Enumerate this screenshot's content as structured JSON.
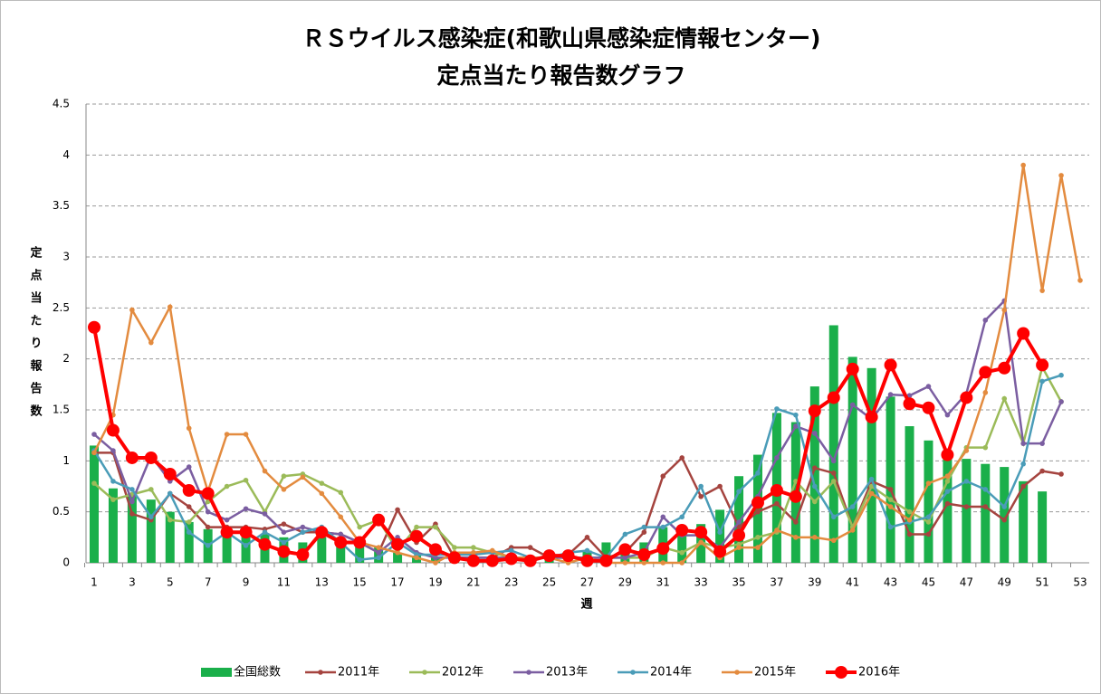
{
  "chart_data": {
    "type": "combo",
    "title": "ＲＳウイルス感染症(和歌山県感染症情報センター)",
    "subtitle": "定点当たり報告数グラフ",
    "x_label": "週",
    "y_label": "定点当たり報告数",
    "categories": [
      1,
      null,
      3,
      null,
      5,
      null,
      7,
      null,
      9,
      null,
      11,
      null,
      13,
      null,
      15,
      null,
      17,
      null,
      19,
      null,
      21,
      null,
      23,
      null,
      25,
      null,
      27,
      null,
      29,
      null,
      31,
      null,
      33,
      null,
      35,
      null,
      37,
      null,
      39,
      null,
      41,
      null,
      43,
      null,
      45,
      null,
      47,
      null,
      49,
      null,
      51,
      null,
      53
    ],
    "ylim": [
      0,
      4.5
    ],
    "yticks": [
      0,
      0.5,
      1,
      1.5,
      2,
      2.5,
      3,
      3.5,
      4,
      4.5
    ],
    "grid": true,
    "legend": "bottom",
    "series": [
      {
        "name": "全国総数",
        "type": "bar",
        "color": "#1aaf4a",
        "values": [
          1.15,
          0.73,
          0.68,
          0.62,
          0.5,
          0.4,
          0.33,
          0.3,
          0.3,
          0.28,
          0.25,
          0.2,
          0.25,
          0.22,
          0.2,
          0.15,
          0.1,
          0.07,
          0.05,
          0.05,
          0.05,
          0.05,
          0.05,
          0.05,
          0.06,
          0.08,
          0.12,
          0.2,
          0.1,
          0.2,
          0.35,
          0.3,
          0.38,
          0.52,
          0.85,
          1.06,
          1.47,
          1.38,
          1.73,
          2.33,
          2.02,
          1.91,
          1.63,
          1.34,
          1.2,
          1.05,
          1.02,
          0.97,
          0.94,
          0.8,
          0.7,
          null,
          null
        ]
      },
      {
        "name": "2011年",
        "type": "line",
        "color": "#a5443f",
        "values": [
          1.08,
          1.08,
          0.48,
          0.42,
          0.68,
          0.55,
          0.35,
          0.35,
          0.35,
          0.33,
          0.38,
          0.3,
          0.3,
          0.28,
          0.2,
          0.1,
          0.52,
          0.2,
          0.38,
          0.05,
          0.05,
          0.05,
          0.15,
          0.15,
          0.05,
          0.08,
          0.25,
          0.05,
          0.1,
          0.3,
          0.85,
          1.03,
          0.65,
          0.75,
          0.35,
          0.5,
          0.58,
          0.4,
          0.93,
          0.88,
          0.35,
          0.8,
          0.72,
          0.28,
          0.28,
          0.58,
          0.55,
          0.55,
          0.42,
          0.75,
          0.9,
          0.87,
          null
        ]
      },
      {
        "name": "2012年",
        "type": "line",
        "color": "#9bbb59",
        "values": [
          0.78,
          0.62,
          0.67,
          0.72,
          0.42,
          0.4,
          0.6,
          0.75,
          0.81,
          0.5,
          0.85,
          0.87,
          0.78,
          0.69,
          0.35,
          0.42,
          0.12,
          0.35,
          0.35,
          0.15,
          0.15,
          0.1,
          0.05,
          0.05,
          0.05,
          0.05,
          0.05,
          0.05,
          0.05,
          0.05,
          0.15,
          0.1,
          0.2,
          0.15,
          0.18,
          0.25,
          0.3,
          0.8,
          0.6,
          0.8,
          0.35,
          0.75,
          0.62,
          0.5,
          0.4,
          0.8,
          1.13,
          1.13,
          1.61,
          1.17,
          1.92,
          1.58,
          null
        ]
      },
      {
        "name": "2013年",
        "type": "line",
        "color": "#7b5ea1",
        "values": [
          1.26,
          1.1,
          0.6,
          1.05,
          0.8,
          0.94,
          0.5,
          0.42,
          0.53,
          0.48,
          0.3,
          0.35,
          0.3,
          0.28,
          0.2,
          0.1,
          0.25,
          0.1,
          0.05,
          0.05,
          0.05,
          0.05,
          0.05,
          0.05,
          0.05,
          0.05,
          0.05,
          0.05,
          0.05,
          0.1,
          0.45,
          0.27,
          0.27,
          0.15,
          0.4,
          0.65,
          1.03,
          1.34,
          1.27,
          1.0,
          1.55,
          1.41,
          1.65,
          1.64,
          1.73,
          1.45,
          1.66,
          2.38,
          2.57,
          1.17,
          1.17,
          1.58,
          null
        ]
      },
      {
        "name": "2014年",
        "type": "line",
        "color": "#4a9cb8",
        "values": [
          1.1,
          0.8,
          0.72,
          0.45,
          0.68,
          0.3,
          0.17,
          0.3,
          0.17,
          0.3,
          0.2,
          0.3,
          0.35,
          0.2,
          0.03,
          0.05,
          0.2,
          0.08,
          0.08,
          0.08,
          0.08,
          0.1,
          0.12,
          0.05,
          0.05,
          0.1,
          0.12,
          0.05,
          0.28,
          0.35,
          0.35,
          0.45,
          0.75,
          0.3,
          0.7,
          0.88,
          1.51,
          1.45,
          0.75,
          0.45,
          0.55,
          0.82,
          0.35,
          0.4,
          0.45,
          0.7,
          0.8,
          0.72,
          0.55,
          0.97,
          1.78,
          1.84,
          null
        ]
      },
      {
        "name": "2015年",
        "type": "line",
        "color": "#e38b3f",
        "values": [
          1.08,
          1.45,
          2.48,
          2.16,
          2.51,
          1.32,
          0.7,
          1.26,
          1.26,
          0.9,
          0.72,
          0.84,
          0.68,
          0.45,
          0.2,
          0.15,
          0.1,
          0.05,
          0,
          0.1,
          0.1,
          0.12,
          0.05,
          0.05,
          0.05,
          0,
          0.05,
          0,
          0,
          0,
          0,
          0,
          0.2,
          0.05,
          0.15,
          0.15,
          0.32,
          0.25,
          0.25,
          0.22,
          0.32,
          0.68,
          0.55,
          0.42,
          0.78,
          0.85,
          1.1,
          1.67,
          2.48,
          3.9,
          2.67,
          3.8,
          2.77
        ]
      },
      {
        "name": "2016年",
        "type": "line",
        "color": "#ff0000",
        "emphasis": true,
        "values": [
          2.31,
          1.3,
          1.03,
          1.03,
          0.87,
          0.71,
          0.68,
          0.3,
          0.3,
          0.18,
          0.11,
          0.08,
          0.3,
          0.2,
          0.2,
          0.42,
          0.18,
          0.26,
          0.13,
          0.05,
          0.02,
          0.02,
          0.04,
          0.02,
          0.07,
          0.07,
          0.02,
          0.02,
          0.13,
          0.08,
          0.14,
          0.32,
          0.3,
          0.11,
          0.27,
          0.59,
          0.71,
          0.65,
          1.49,
          1.62,
          1.9,
          1.43,
          1.94,
          1.56,
          1.52,
          1.06,
          1.62,
          1.87,
          1.91,
          2.25,
          1.94,
          null,
          null
        ]
      }
    ]
  }
}
